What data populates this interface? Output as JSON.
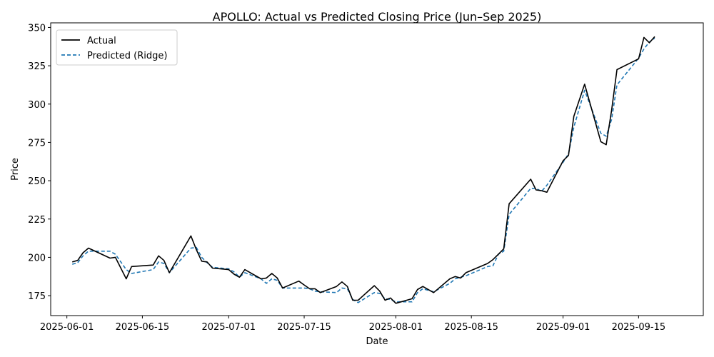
{
  "chart_data": {
    "type": "line",
    "title": "APOLLO: Actual vs Predicted Closing Price (Jun–Sep 2025)",
    "xlabel": "Date",
    "ylabel": "Price",
    "x_ticks": [
      "2025-06-01",
      "2025-06-15",
      "2025-07-01",
      "2025-07-15",
      "2025-08-01",
      "2025-08-15",
      "2025-09-01",
      "2025-09-15"
    ],
    "y_ticks": [
      175,
      200,
      225,
      250,
      275,
      300,
      325,
      350
    ],
    "ylim": [
      162,
      353
    ],
    "xlim": [
      "2025-05-29",
      "2025-09-27"
    ],
    "legend_position": "upper-left",
    "dates": [
      "2025-06-02",
      "2025-06-03",
      "2025-06-04",
      "2025-06-05",
      "2025-06-09",
      "2025-06-10",
      "2025-06-12",
      "2025-06-13",
      "2025-06-17",
      "2025-06-18",
      "2025-06-19",
      "2025-06-20",
      "2025-06-24",
      "2025-06-25",
      "2025-06-26",
      "2025-06-27",
      "2025-06-28",
      "2025-07-01",
      "2025-07-02",
      "2025-07-03",
      "2025-07-04",
      "2025-07-07",
      "2025-07-08",
      "2025-07-09",
      "2025-07-10",
      "2025-07-11",
      "2025-07-14",
      "2025-07-15",
      "2025-07-16",
      "2025-07-17",
      "2025-07-18",
      "2025-07-21",
      "2025-07-22",
      "2025-07-23",
      "2025-07-24",
      "2025-07-25",
      "2025-07-28",
      "2025-07-29",
      "2025-07-30",
      "2025-07-31",
      "2025-08-01",
      "2025-08-04",
      "2025-08-05",
      "2025-08-06",
      "2025-08-08",
      "2025-08-11",
      "2025-08-12",
      "2025-08-13",
      "2025-08-14",
      "2025-08-18",
      "2025-08-19",
      "2025-08-20",
      "2025-08-21",
      "2025-08-22",
      "2025-08-26",
      "2025-08-27",
      "2025-08-28",
      "2025-08-29",
      "2025-09-01",
      "2025-09-02",
      "2025-09-03",
      "2025-09-05",
      "2025-09-08",
      "2025-09-09",
      "2025-09-10",
      "2025-09-11",
      "2025-09-15",
      "2025-09-16",
      "2025-09-17",
      "2025-09-18"
    ],
    "series": [
      {
        "name": "Actual",
        "color": "#000000",
        "style": "solid",
        "values": [
          197.0,
          198.0,
          203.0,
          206.0,
          199.5,
          200.0,
          186.0,
          194.0,
          195.0,
          201.0,
          198.0,
          190.0,
          214.0,
          205.0,
          197.5,
          197.0,
          193.0,
          192.0,
          189.0,
          187.0,
          192.0,
          186.0,
          186.5,
          189.5,
          186.5,
          180.0,
          184.5,
          182.0,
          179.5,
          179.5,
          177.0,
          181.0,
          184.0,
          181.0,
          172.0,
          172.0,
          181.5,
          178.0,
          172.0,
          173.5,
          170.0,
          173.0,
          179.0,
          181.0,
          177.0,
          186.0,
          187.5,
          186.5,
          190.0,
          196.0,
          198.5,
          202.0,
          205.5,
          235.0,
          251.0,
          244.0,
          243.5,
          242.5,
          263.0,
          266.5,
          292.0,
          313.0,
          275.5,
          273.5,
          296.0,
          322.5,
          329.5,
          343.5,
          340.0,
          344.0
        ]
      },
      {
        "name": "Predicted (Ridge)",
        "color": "#1f77b4",
        "style": "dashed",
        "values": [
          195.5,
          196.5,
          201.0,
          204.0,
          204.0,
          202.0,
          192.0,
          189.5,
          192.0,
          197.0,
          196.0,
          190.0,
          206.0,
          206.5,
          200.0,
          196.5,
          193.5,
          192.5,
          190.5,
          187.0,
          190.0,
          186.0,
          183.0,
          186.0,
          185.0,
          180.0,
          180.0,
          180.0,
          179.5,
          178.0,
          177.5,
          177.0,
          180.0,
          179.5,
          172.5,
          170.5,
          177.0,
          176.5,
          173.0,
          172.5,
          171.0,
          171.0,
          177.0,
          179.5,
          177.5,
          183.0,
          186.0,
          187.0,
          188.0,
          194.0,
          194.5,
          202.0,
          204.0,
          228.0,
          245.0,
          245.0,
          243.0,
          247.0,
          262.0,
          267.5,
          285.0,
          309.0,
          281.0,
          279.0,
          290.0,
          312.5,
          330.0,
          336.0,
          340.5,
          343.0
        ]
      }
    ]
  }
}
